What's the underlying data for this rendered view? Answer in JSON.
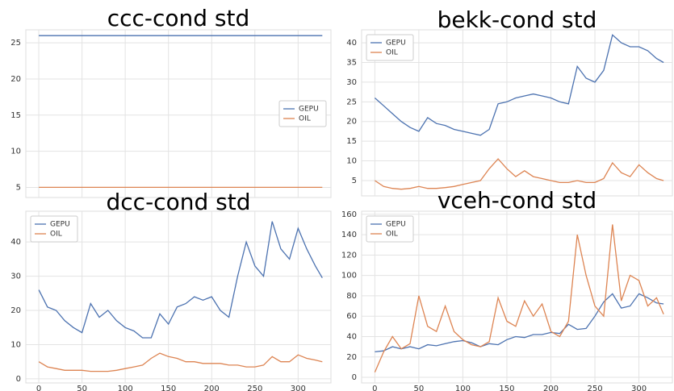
{
  "chart_data": [
    {
      "type": "line",
      "title": "ccc-cond std",
      "x": [
        0,
        328
      ],
      "series": [
        {
          "name": "GEPU",
          "color": "#4c72b0",
          "values": [
            26,
            26
          ]
        },
        {
          "name": "OIL",
          "color": "#dd8452",
          "values": [
            5,
            5
          ]
        }
      ],
      "xlim": [
        -15,
        338
      ],
      "ylim": [
        3.6,
        26.8
      ],
      "xticks": [
        0,
        50,
        100,
        150,
        200,
        250,
        300
      ],
      "yticks": [
        5,
        10,
        15,
        20,
        25
      ],
      "grid": true,
      "legend": "center right"
    },
    {
      "type": "line",
      "title": "bekk-cond std",
      "x": [
        0,
        10,
        20,
        30,
        40,
        50,
        60,
        70,
        80,
        90,
        100,
        110,
        120,
        130,
        140,
        150,
        160,
        170,
        180,
        190,
        200,
        210,
        220,
        230,
        240,
        250,
        260,
        270,
        280,
        290,
        300,
        310,
        320,
        328
      ],
      "series": [
        {
          "name": "GEPU",
          "color": "#4c72b0",
          "values": [
            26,
            24,
            22,
            20,
            18.5,
            17.5,
            21,
            19.5,
            19,
            18,
            17.5,
            17,
            16.5,
            18,
            24.5,
            25,
            26,
            26.5,
            27,
            26.5,
            26,
            25,
            24.5,
            34,
            31,
            30,
            33,
            42,
            40,
            39,
            39,
            38,
            36,
            35
          ]
        },
        {
          "name": "OIL",
          "color": "#dd8452",
          "values": [
            5,
            3.5,
            3,
            2.8,
            3,
            3.5,
            3,
            3,
            3.2,
            3.5,
            4,
            4.5,
            5,
            8,
            10.5,
            8,
            6,
            7.5,
            6,
            5.5,
            5,
            4.5,
            4.5,
            5,
            4.5,
            4.5,
            5.5,
            9.5,
            7,
            6,
            9,
            7,
            5.5,
            5
          ]
        }
      ],
      "xlim": [
        -15,
        338
      ],
      "ylim": [
        1.1,
        43.3
      ],
      "xticks": [
        0,
        50,
        100,
        150,
        200,
        250,
        300
      ],
      "yticks": [
        5,
        10,
        15,
        20,
        25,
        30,
        35,
        40
      ],
      "grid": true,
      "legend": "upper left"
    },
    {
      "type": "line",
      "title": "dcc-cond std",
      "x": [
        0,
        10,
        20,
        30,
        40,
        50,
        60,
        70,
        80,
        90,
        100,
        110,
        120,
        130,
        140,
        150,
        160,
        170,
        180,
        190,
        200,
        210,
        220,
        230,
        240,
        250,
        260,
        270,
        280,
        290,
        300,
        310,
        320,
        328
      ],
      "series": [
        {
          "name": "GEPU",
          "color": "#4c72b0",
          "values": [
            26,
            21,
            20,
            17,
            15,
            13.5,
            22,
            18,
            20,
            17,
            15,
            14,
            12,
            12,
            19,
            16,
            21,
            22,
            24,
            23,
            24,
            20,
            18,
            30,
            40,
            33,
            30,
            46,
            38,
            35,
            44,
            38,
            33,
            29.5
          ]
        },
        {
          "name": "OIL",
          "color": "#dd8452",
          "values": [
            5,
            3.5,
            3,
            2.5,
            2.5,
            2.5,
            2.2,
            2.2,
            2.2,
            2.5,
            3,
            3.5,
            4,
            6,
            7.5,
            6.5,
            6,
            5,
            5,
            4.5,
            4.5,
            4.5,
            4,
            4,
            3.5,
            3.5,
            4,
            6.5,
            5,
            5,
            7,
            6,
            5.5,
            5
          ]
        }
      ],
      "xlim": [
        -15,
        338
      ],
      "ylim": [
        -1.2,
        49
      ],
      "xticks": [
        0,
        50,
        100,
        150,
        200,
        250,
        300
      ],
      "yticks": [
        0,
        10,
        20,
        30,
        40
      ],
      "grid": true,
      "legend": "upper left"
    },
    {
      "type": "line",
      "title": "vceh-cond std",
      "x": [
        0,
        10,
        20,
        30,
        40,
        50,
        60,
        70,
        80,
        90,
        100,
        110,
        120,
        130,
        140,
        150,
        160,
        170,
        180,
        190,
        200,
        210,
        220,
        230,
        240,
        250,
        260,
        270,
        280,
        290,
        300,
        310,
        320,
        328
      ],
      "series": [
        {
          "name": "GEPU",
          "color": "#4c72b0",
          "values": [
            25,
            26,
            30,
            28,
            30,
            28,
            32,
            31,
            33,
            35,
            36,
            34,
            30,
            33,
            32,
            37,
            40,
            39,
            42,
            42,
            44,
            43,
            52,
            47,
            48,
            60,
            74,
            82,
            68,
            70,
            82,
            78,
            73,
            72
          ]
        },
        {
          "name": "OIL",
          "color": "#dd8452",
          "values": [
            5,
            25,
            40,
            28,
            33,
            80,
            50,
            45,
            70,
            45,
            37,
            32,
            30,
            35,
            78,
            55,
            50,
            75,
            60,
            72,
            45,
            40,
            55,
            140,
            100,
            70,
            60,
            150,
            75,
            100,
            95,
            70,
            78,
            62
          ]
        }
      ],
      "xlim": [
        -15,
        338
      ],
      "ylim": [
        -5.5,
        163
      ],
      "xticks": [
        0,
        50,
        100,
        150,
        200,
        250,
        300
      ],
      "yticks": [
        0,
        20,
        40,
        60,
        80,
        100,
        120,
        140,
        160
      ],
      "grid": true,
      "legend": "upper left"
    }
  ]
}
